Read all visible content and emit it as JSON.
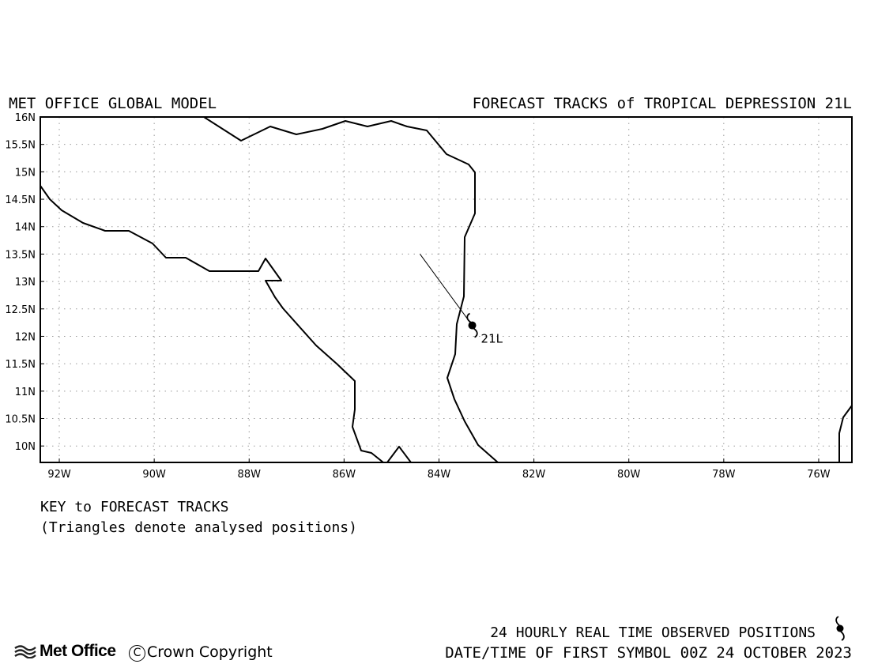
{
  "header": {
    "left_title": "MET OFFICE GLOBAL MODEL",
    "right_title": "FORECAST TRACKS of TROPICAL DEPRESSION 21L"
  },
  "map": {
    "lon_range": [
      -92.4,
      -75.3
    ],
    "lat_range": [
      9.7,
      16.0
    ],
    "lat_ticks": [
      {
        "value": 16.0,
        "label": "16N"
      },
      {
        "value": 15.5,
        "label": "15.5N"
      },
      {
        "value": 15.0,
        "label": "15N"
      },
      {
        "value": 14.5,
        "label": "14.5N"
      },
      {
        "value": 14.0,
        "label": "14N"
      },
      {
        "value": 13.5,
        "label": "13.5N"
      },
      {
        "value": 13.0,
        "label": "13N"
      },
      {
        "value": 12.5,
        "label": "12.5N"
      },
      {
        "value": 12.0,
        "label": "12N"
      },
      {
        "value": 11.5,
        "label": "11.5N"
      },
      {
        "value": 11.0,
        "label": "11N"
      },
      {
        "value": 10.5,
        "label": "10.5N"
      },
      {
        "value": 10.0,
        "label": "10N"
      }
    ],
    "lon_ticks": [
      {
        "value": -92,
        "label": "92W"
      },
      {
        "value": -90,
        "label": "90W"
      },
      {
        "value": -88,
        "label": "88W"
      },
      {
        "value": -86,
        "label": "86W"
      },
      {
        "value": -84,
        "label": "84W"
      },
      {
        "value": -82,
        "label": "82W"
      },
      {
        "value": -80,
        "label": "80W"
      },
      {
        "value": -78,
        "label": "78W"
      },
      {
        "value": -76,
        "label": "76W"
      }
    ],
    "gridlines": true,
    "storm": {
      "label": "21L",
      "observed_position": {
        "lon": -83.3,
        "lat": 12.2
      },
      "forecast_track": [
        {
          "lon": -83.3,
          "lat": 12.2
        },
        {
          "lon": -84.4,
          "lat": 13.5
        }
      ]
    }
  },
  "key": {
    "title": "KEY to FORECAST TRACKS",
    "note": "(Triangles denote analysed positions)"
  },
  "footer": {
    "observed_label": "24 HOURLY REAL TIME OBSERVED POSITIONS",
    "datetime_label": "DATE/TIME OF FIRST SYMBOL 00Z 24 OCTOBER 2023",
    "logo_text": "Met Office",
    "copyright": "Crown Copyright"
  }
}
